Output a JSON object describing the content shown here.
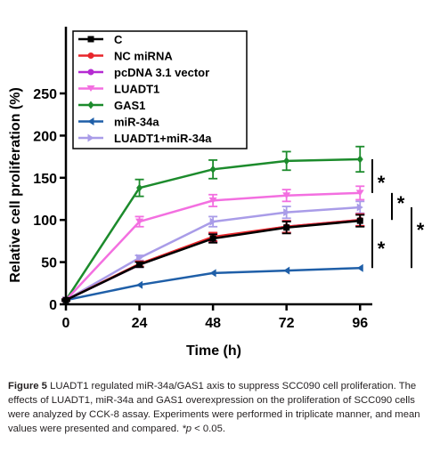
{
  "chart_data": {
    "type": "line",
    "x": [
      0,
      24,
      48,
      72,
      96
    ],
    "xlabel": "Time (h)",
    "ylabel": "Relative cell proliferation (%)",
    "xlim": [
      0,
      100
    ],
    "ylim": [
      0,
      250
    ],
    "xticks": [
      "0",
      "24",
      "48",
      "72",
      "96"
    ],
    "yticks": [
      "0",
      "50",
      "100",
      "150",
      "200",
      "250"
    ],
    "grid": false,
    "legend_position": "top-left",
    "series": [
      {
        "name": "C",
        "color": "#000000",
        "marker": "square",
        "values": [
          5,
          47,
          78,
          91,
          99
        ],
        "errors": [
          1,
          3,
          5,
          7,
          7
        ]
      },
      {
        "name": "NC miRNA",
        "color": "#e8262b",
        "marker": "circle",
        "values": [
          5,
          48,
          80,
          92,
          100
        ],
        "errors": [
          1,
          3,
          5,
          7,
          7
        ]
      },
      {
        "name": "pcDNA 3.1 vector",
        "color": "#b52bd2",
        "marker": "circle",
        "values": [
          5,
          47,
          79,
          92,
          100
        ],
        "errors": [
          1,
          3,
          5,
          7,
          7
        ]
      },
      {
        "name": "LUADT1",
        "color": "#f36fe0",
        "marker": "triangle-down",
        "values": [
          5,
          98,
          123,
          129,
          132
        ],
        "errors": [
          1,
          6,
          7,
          7,
          8
        ]
      },
      {
        "name": "GAS1",
        "color": "#1c8b2c",
        "marker": "diamond",
        "values": [
          5,
          138,
          160,
          170,
          172
        ],
        "errors": [
          1,
          10,
          11,
          11,
          15
        ]
      },
      {
        "name": "miR-34a",
        "color": "#1f5fa8",
        "marker": "triangle-left",
        "values": [
          5,
          23,
          37,
          40,
          43
        ],
        "errors": [
          0,
          0,
          0,
          0,
          0
        ]
      },
      {
        "name": "LUADT1+miR-34a",
        "color": "#a99ce8",
        "marker": "triangle-right",
        "values": [
          5,
          55,
          98,
          109,
          115
        ],
        "errors": [
          1,
          3,
          6,
          7,
          7
        ]
      }
    ],
    "annotations": [
      "*",
      "*",
      "*"
    ],
    "caption": {
      "lead": "Figure 5",
      "text": " LUADT1 regulated miR-34a/GAS1 axis to suppress SCC090 cell proliferation. The effects of LUADT1, miR-34a and GAS1 overexpression on the proliferation of SCC090 cells were analyzed by CCK-8 assay. Experiments were performed in triplicate manner, and mean values were presented and compared. ",
      "sym": "*p",
      "tail": " < 0.05."
    }
  }
}
